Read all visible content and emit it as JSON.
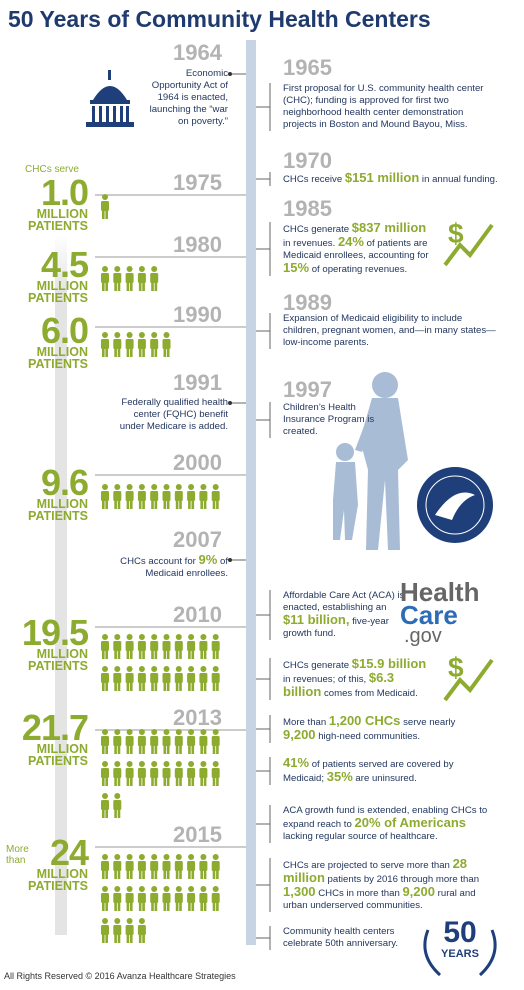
{
  "title": "50 Years of Community Health Centers",
  "left": [
    {
      "year": "1964",
      "note": [
        "Economic Opportunity Act of 1964 is enacted, launching the “war on poverty.”"
      ]
    },
    {
      "year": "1975",
      "prefix": "CHCs serve",
      "number": "1.0",
      "unit": "MILLION PATIENTS"
    },
    {
      "year": "1980",
      "number": "4.5",
      "unit": "MILLION PATIENTS"
    },
    {
      "year": "1990",
      "number": "6.0",
      "unit": "MILLION PATIENTS"
    },
    {
      "year": "1991",
      "note": [
        "Federally qualified health center (FQHC) benefit under Medicare is added."
      ]
    },
    {
      "year": "2000",
      "number": "9.6",
      "unit": "MILLION PATIENTS"
    },
    {
      "year": "2007",
      "note": [
        "CHCs account for ",
        {
          "text": "9%",
          "emphasis": true
        },
        " of Medicaid enrollees."
      ]
    },
    {
      "year": "2010",
      "number": "19.5",
      "unit": "MILLION PATIENTS"
    },
    {
      "year": "2013",
      "number": "21.7",
      "unit": "MILLION PATIENTS"
    },
    {
      "year": "2015",
      "prefix": "More than",
      "number": "24",
      "unit": "MILLION PATIENTS"
    }
  ],
  "right": [
    {
      "year": "1965",
      "notes": [
        [
          "First proposal for U.S. community health center (CHC); funding is approved for first two neighborhood health center demonstration projects in Boston and Mound Bayou, Miss."
        ]
      ]
    },
    {
      "year": "1970",
      "notes": [
        [
          "CHCs receive ",
          {
            "text": "$151 million",
            "emphasis": true
          },
          " in annual funding."
        ]
      ]
    },
    {
      "year": "1985",
      "notes": [
        [
          "CHCs generate ",
          {
            "text": "$837 million",
            "emphasis": true
          },
          " in revenues. ",
          {
            "text": "24%",
            "emphasis": true
          },
          " of patients are Medicaid enrollees, accounting for ",
          {
            "text": "15%",
            "emphasis": true
          },
          " of operating revenues."
        ]
      ]
    },
    {
      "year": "1989",
      "notes": [
        [
          "Expansion of Medicaid eligibility to include children, pregnant women, and—in many states—low-income parents."
        ]
      ]
    },
    {
      "year": "1997",
      "notes": [
        [
          "Children’s Health Insurance Program is created."
        ]
      ]
    },
    {
      "notes": [
        [
          "Affordable Care Act (ACA) is enacted, establishing an ",
          {
            "text": "$11 billion,",
            "emphasis": true
          },
          " five-year growth fund."
        ]
      ]
    },
    {
      "notes": [
        [
          "CHCs generate ",
          {
            "text": "$15.9 billion",
            "emphasis": true
          },
          " in revenues; of this, ",
          {
            "text": "$6.3 billion",
            "emphasis": true
          },
          " comes from Medicaid."
        ],
        [
          "More than ",
          {
            "text": "1,200 CHCs",
            "emphasis": true
          },
          " serve nearly ",
          {
            "text": "9,200",
            "emphasis": true
          },
          " high-need communities."
        ],
        [
          {
            "text": "41%",
            "emphasis": true
          },
          " of patients served are covered by Medicaid; ",
          {
            "text": "35%",
            "emphasis": true
          },
          " are uninsured."
        ]
      ]
    },
    {
      "notes": [
        [
          "ACA growth fund is extended, enabling CHCs to expand reach to ",
          {
            "text": "20% of Americans",
            "emphasis": true
          },
          " lacking regular source of healthcare."
        ],
        [
          "CHCs are projected to serve more than ",
          {
            "text": "28 million",
            "emphasis": true
          },
          " patients by 2016 through more than ",
          {
            "text": "1,300",
            "emphasis": true
          },
          " CHCs in more than ",
          {
            "text": "9,200",
            "emphasis": true
          },
          " rural and urban underserved communities."
        ],
        [
          "Community health centers celebrate 50th anniversary."
        ]
      ]
    }
  ],
  "logo": {
    "line1": "Health",
    "line2": "Care",
    "line3": ".gov"
  },
  "badge": {
    "number": "50",
    "label": "YEARS"
  },
  "footer": "All Rights Reserved © 2016 Avanza Healthcare Strategies"
}
